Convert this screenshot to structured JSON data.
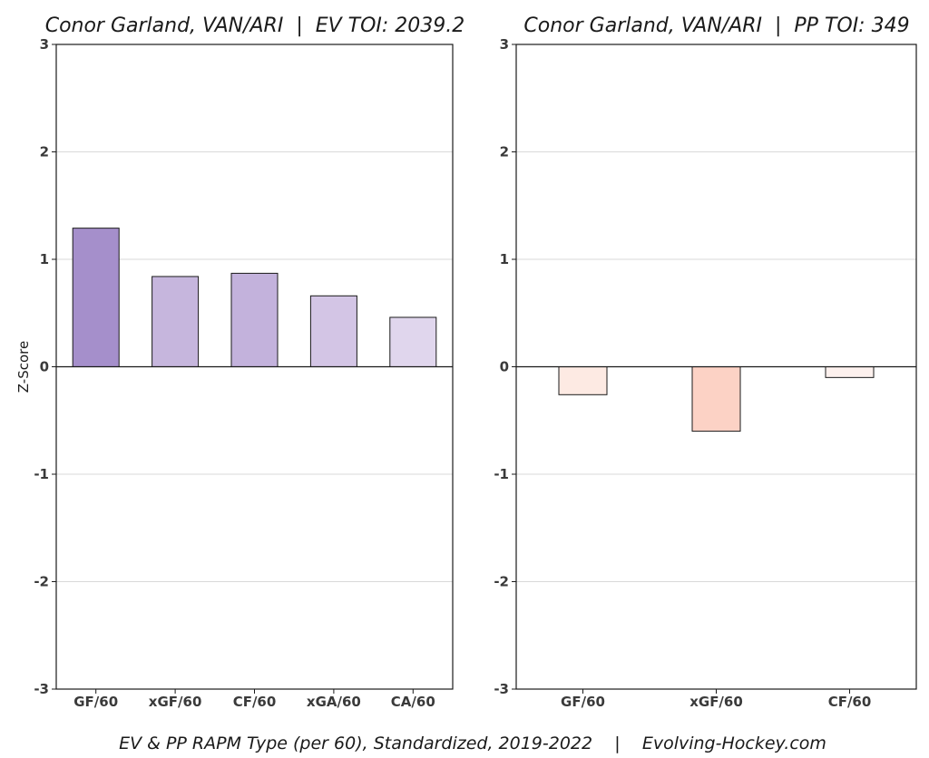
{
  "chart_data": [
    {
      "type": "bar",
      "title": "Conor Garland, VAN/ARI  |  EV TOI: 2039.2",
      "xlabel": "",
      "ylabel": "Z-Score",
      "ylim": [
        -3,
        3
      ],
      "yticks": [
        "-3",
        "-2",
        "-1",
        "0",
        "1",
        "2",
        "3"
      ],
      "grid": "horizontal",
      "categories": [
        "GF/60",
        "xGF/60",
        "CF/60",
        "xGA/60",
        "CA/60"
      ],
      "values": [
        1.29,
        0.84,
        0.87,
        0.66,
        0.46
      ],
      "colors": [
        "#a58fcb",
        "#c6b6dd",
        "#c3b2dc",
        "#d3c5e5",
        "#e0d6ed"
      ]
    },
    {
      "type": "bar",
      "title": "Conor Garland, VAN/ARI  |  PP TOI: 349",
      "xlabel": "",
      "ylabel": "",
      "ylim": [
        -3,
        3
      ],
      "yticks": [
        "-3",
        "-2",
        "-1",
        "0",
        "1",
        "2",
        "3"
      ],
      "grid": "horizontal",
      "categories": [
        "GF/60",
        "xGF/60",
        "CF/60"
      ],
      "values": [
        -0.26,
        -0.6,
        -0.1
      ],
      "colors": [
        "#fdeae3",
        "#fcd2c5",
        "#fdf1ee"
      ]
    }
  ],
  "footer": "EV & PP RAPM Type (per 60), Standardized, 2019-2022    |    Evolving-Hockey.com"
}
